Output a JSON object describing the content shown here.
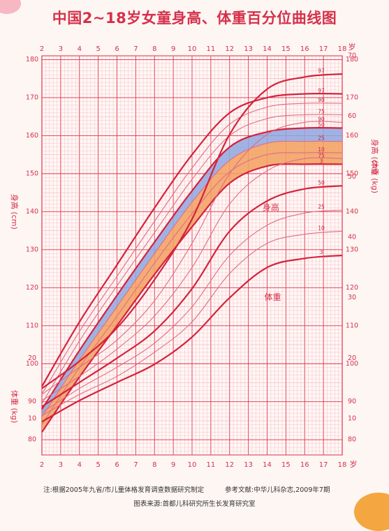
{
  "title": "中国2~18岁女童身高、体重百分位曲线图",
  "notes": {
    "source_note": "注:根据2005年九省/市儿童体格发育调查数据研究制定",
    "reference": "参考文献:中华儿科杂志,2009年7期",
    "chart_source": "图表来源:首都儿科研究所生长发育研究室"
  },
  "colors": {
    "grid_major": "#e0314b",
    "grid_minor": "#f2a6b1",
    "curve_strong": "#d3233d",
    "curve_light": "#dd6f84",
    "band_blue": "#8fa7e0",
    "band_orange": "#f3a05f",
    "text": "#d6304a"
  },
  "chart_data": [
    {
      "type": "line",
      "ylabel": "身高 (cm)",
      "series_label_text": "身高",
      "x_axis_label": "岁",
      "x_ticks": [
        2,
        3,
        4,
        5,
        6,
        7,
        8,
        9,
        10,
        11,
        12,
        13,
        14,
        15,
        16,
        17,
        18
      ],
      "y_ticks": [
        80,
        90,
        100,
        110,
        120,
        130,
        140,
        150,
        160,
        170,
        180
      ],
      "xlim": [
        2,
        18
      ],
      "ylim": [
        76,
        181
      ],
      "x": [
        2,
        4,
        6,
        8,
        10,
        12,
        14,
        16,
        18
      ],
      "series": [
        {
          "name": "97",
          "values": [
            94,
            111,
            126,
            141,
            155,
            166,
            170,
            171,
            171
          ]
        },
        {
          "name": "90",
          "values": [
            92,
            108.5,
            123,
            137.5,
            151.5,
            163,
            167.5,
            168.5,
            168.5
          ]
        },
        {
          "name": "75",
          "values": [
            89.5,
            106,
            120.5,
            134.5,
            148.5,
            160,
            164.5,
            165.5,
            165.5
          ]
        },
        {
          "name": "50",
          "values": [
            88,
            103.5,
            118,
            132,
            145.5,
            157,
            161,
            162,
            162
          ]
        },
        {
          "name": "25",
          "values": [
            86,
            101,
            115,
            129,
            142.5,
            153.5,
            158,
            158.5,
            158.5
          ]
        },
        {
          "name": "10",
          "values": [
            84,
            99,
            112.5,
            126.5,
            139.5,
            150.5,
            155,
            155.5,
            155.5
          ]
        },
        {
          "name": "3",
          "values": [
            82,
            96.5,
            110,
            123.5,
            136,
            147.5,
            152,
            152.5,
            152.5
          ]
        }
      ]
    },
    {
      "type": "line",
      "ylabel": "体重 (kg)",
      "series_label_text": "体重",
      "x_axis_label": "岁",
      "y_ticks_left": [
        10,
        20
      ],
      "y_ticks_right": [
        10,
        20,
        30,
        40,
        50,
        60,
        70
      ],
      "ylim": [
        4,
        70
      ],
      "x": [
        2,
        4,
        6,
        8,
        10,
        12,
        14,
        16,
        18
      ],
      "series": [
        {
          "name": "97",
          "values": [
            15,
            19.5,
            25,
            33,
            43,
            57,
            64.5,
            66.5,
            67
          ]
        },
        {
          "name": "90",
          "values": [
            14,
            18.5,
            23,
            29.5,
            39,
            50.5,
            57,
            59,
            59
          ]
        },
        {
          "name": "75",
          "values": [
            13,
            17,
            21.5,
            27,
            35,
            45.5,
            51,
            53,
            53
          ]
        },
        {
          "name": "50",
          "values": [
            12,
            16,
            20,
            24.5,
            31.5,
            41,
            46,
            48,
            48.5
          ]
        },
        {
          "name": "25",
          "values": [
            11,
            15,
            18.5,
            22.5,
            28.5,
            37,
            42,
            44,
            44.5
          ]
        },
        {
          "name": "10",
          "values": [
            10.5,
            14,
            17,
            21,
            26,
            34,
            39,
            40.5,
            41
          ]
        },
        {
          "name": "3",
          "values": [
            9.5,
            13,
            16,
            19,
            23.5,
            30,
            35,
            36.5,
            37
          ]
        }
      ]
    }
  ]
}
